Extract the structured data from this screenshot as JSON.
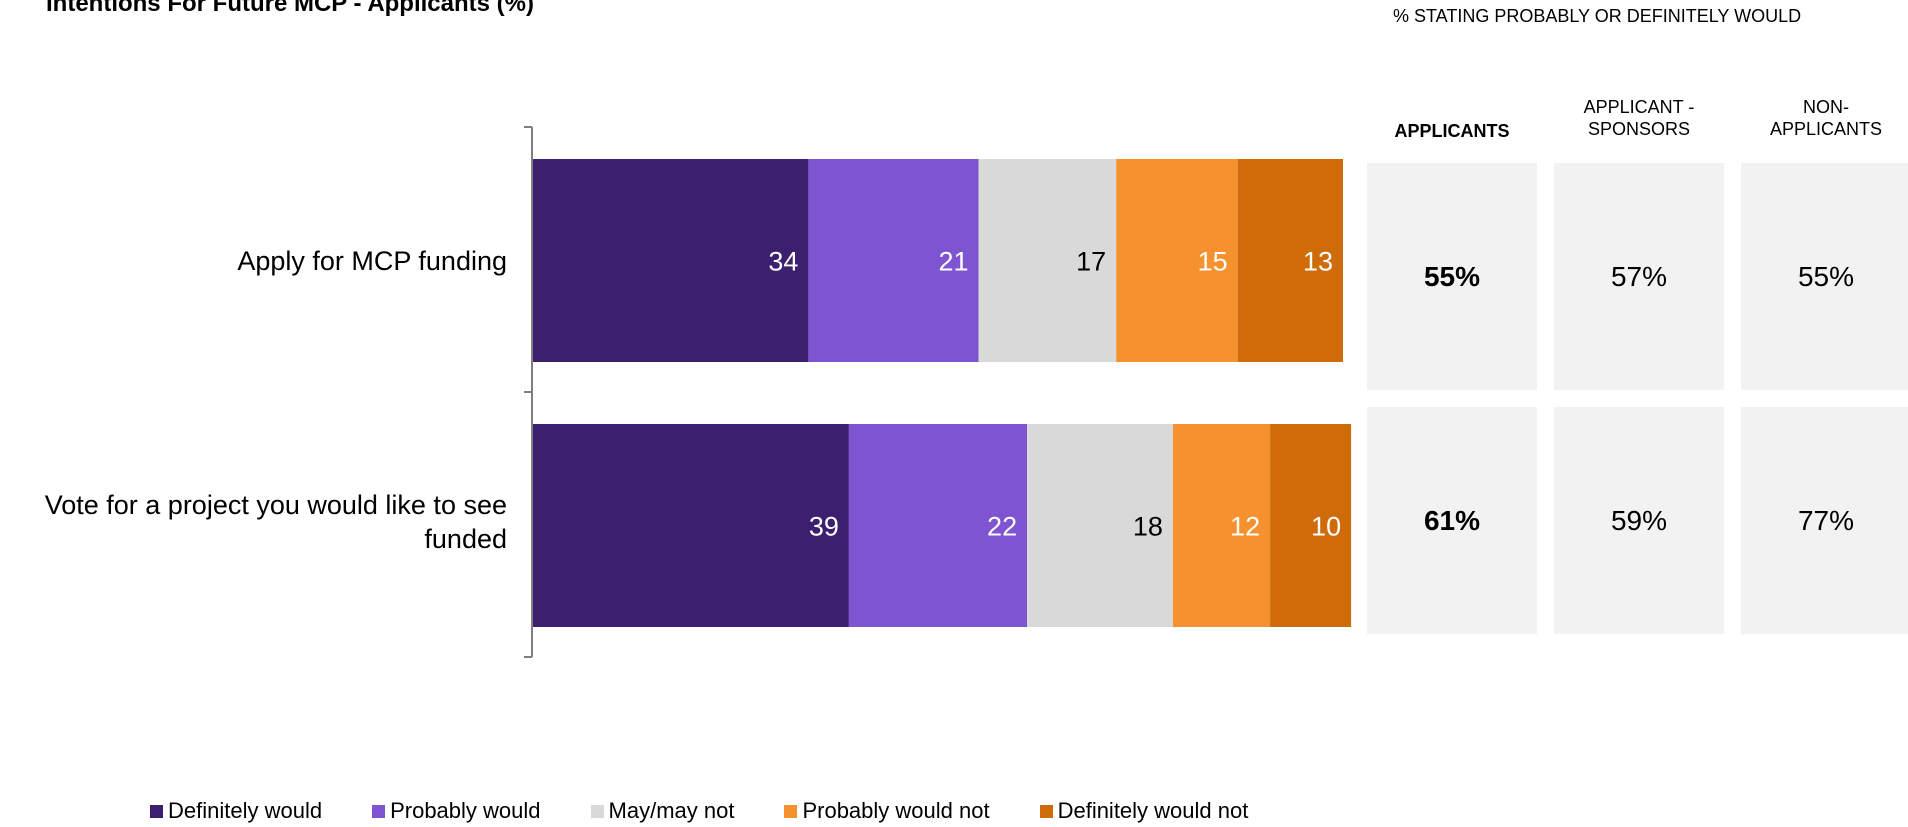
{
  "chart_data": {
    "type": "bar",
    "orientation": "horizontal-stacked",
    "title": "Intentions For Future MCP - Applicants (%)",
    "categories": [
      "Apply for MCP funding",
      "Vote for a project you would like to see funded"
    ],
    "series": [
      {
        "name": "Definitely would",
        "color": "#3c1f6e",
        "label_color": "#ffffff",
        "values": [
          34,
          39
        ]
      },
      {
        "name": "Probably would",
        "color": "#7f54d1",
        "label_color": "#ffffff",
        "values": [
          21,
          22
        ]
      },
      {
        "name": "May/may not",
        "color": "#d9d9d9",
        "label_color": "#000000",
        "values": [
          17,
          18
        ]
      },
      {
        "name": "Probably would not",
        "color": "#f5922f",
        "label_color": "#ffffff",
        "values": [
          15,
          12
        ]
      },
      {
        "name": "Definitely would not",
        "color": "#d06b0a",
        "label_color": "#ffffff",
        "values": [
          13,
          10
        ]
      }
    ],
    "legend_position": "bottom",
    "grid": false
  },
  "panel": {
    "caption": "% STATING PROBABLY OR DEFINITELY WOULD",
    "columns": [
      {
        "header": "APPLICANTS",
        "bold": true,
        "values": [
          "55%",
          "61%"
        ]
      },
      {
        "header": "APPLICANT - SPONSORS",
        "bold": false,
        "values": [
          "57%",
          "59%"
        ]
      },
      {
        "header": "NON-APPLICANTS",
        "bold": false,
        "values": [
          "55%",
          "77%"
        ]
      }
    ]
  }
}
